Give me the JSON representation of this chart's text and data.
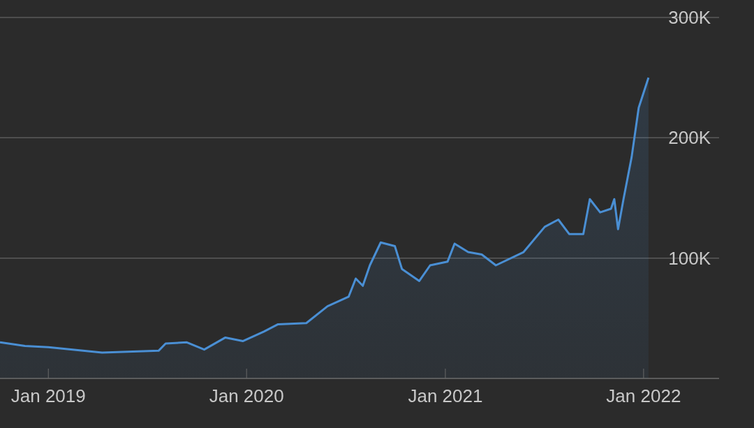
{
  "chart_data": {
    "type": "area",
    "x": [
      "2018-10-04",
      "2018-11-19",
      "2019-01-01",
      "2019-04-10",
      "2019-07-23",
      "2019-08-05",
      "2019-09-13",
      "2019-10-15",
      "2019-11-23",
      "2019-12-25",
      "2020-02-02",
      "2020-02-28",
      "2020-04-20",
      "2020-05-29",
      "2020-07-07",
      "2020-07-20",
      "2020-08-02",
      "2020-08-15",
      "2020-09-04",
      "2020-09-30",
      "2020-10-13",
      "2020-11-14",
      "2020-12-04",
      "2021-01-05",
      "2021-01-18",
      "2021-02-12",
      "2021-03-09",
      "2021-04-04",
      "2021-05-25",
      "2021-06-07",
      "2021-07-03",
      "2021-07-28",
      "2021-08-17",
      "2021-09-12",
      "2021-09-24",
      "2021-10-13",
      "2021-11-02",
      "2021-11-08",
      "2021-11-15",
      "2021-11-25",
      "2021-12-10",
      "2021-12-23",
      "2022-01-10"
    ],
    "series": [
      {
        "color": "#4a8fd4",
        "values": [
          30000,
          27000,
          26000,
          21500,
          23000,
          29000,
          30000,
          24000,
          34000,
          31000,
          39000,
          45000,
          46000,
          60000,
          68000,
          83000,
          77000,
          94000,
          113000,
          110000,
          91000,
          81000,
          94000,
          97000,
          112000,
          105000,
          103000,
          94000,
          105000,
          112000,
          126000,
          132000,
          120000,
          120000,
          149000,
          138000,
          141000,
          149000,
          124000,
          149000,
          184000,
          225000,
          250000
        ]
      }
    ],
    "xlim": [
      "2018-10-04",
      "2022-05-20"
    ],
    "xticks": [
      {
        "value": "2019-01-01",
        "label": "Jan 2019"
      },
      {
        "value": "2020-01-01",
        "label": "Jan 2020"
      },
      {
        "value": "2021-01-01",
        "label": "Jan 2021"
      },
      {
        "value": "2022-01-01",
        "label": "Jan 2022"
      }
    ],
    "ylim": [
      0,
      300000
    ],
    "yticks": [
      {
        "value": 100000,
        "label": "100K"
      },
      {
        "value": 200000,
        "label": "200K"
      },
      {
        "value": 300000,
        "label": "300K"
      }
    ],
    "grid": "y",
    "legend": false
  }
}
